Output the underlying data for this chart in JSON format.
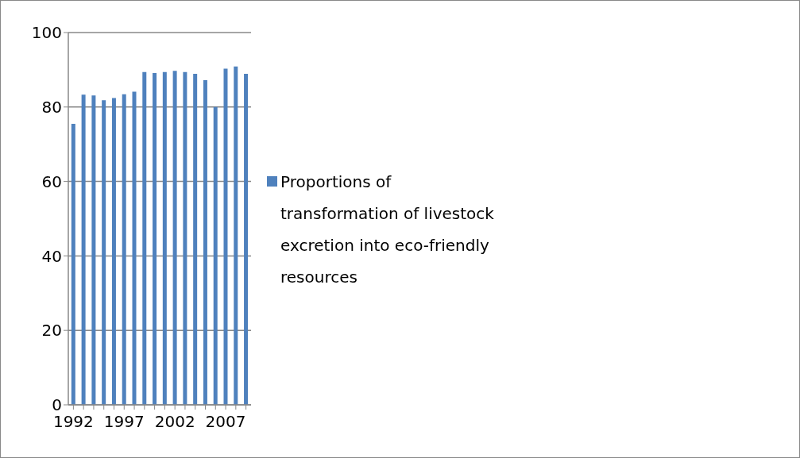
{
  "chart_data": {
    "type": "bar",
    "categories": [
      "1992",
      null,
      null,
      null,
      null,
      "1997",
      null,
      null,
      null,
      null,
      "2002",
      null,
      null,
      null,
      null,
      "2007",
      null,
      null
    ],
    "series": [
      {
        "name": "Proportions of transformation of livestock excretion into eco-friendly resources",
        "color": "#4f81bd",
        "values": [
          75.5,
          83.3,
          83.1,
          81.8,
          82.4,
          83.4,
          84.1,
          89.4,
          89.1,
          89.4,
          89.7,
          89.4,
          88.9,
          87.2,
          80.0,
          90.3,
          90.9,
          88.9
        ]
      }
    ],
    "ylim": [
      0,
      100
    ],
    "yticks": [
      0,
      20,
      40,
      60,
      80,
      100
    ],
    "grid": "y",
    "legend": "right"
  }
}
